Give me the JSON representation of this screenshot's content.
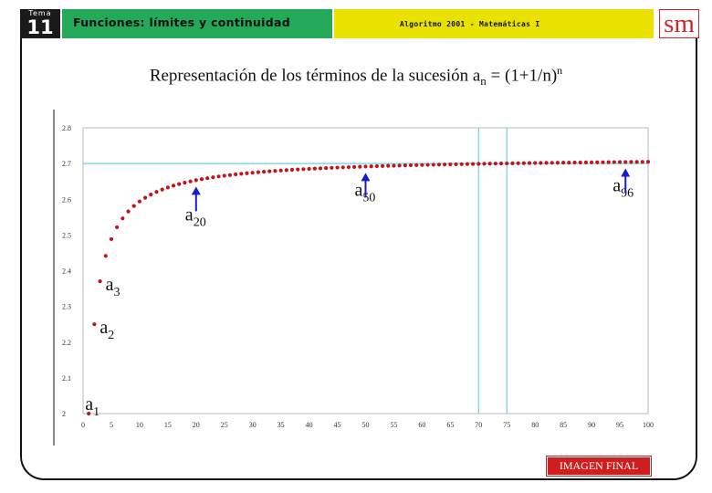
{
  "header": {
    "tema_label": "Tema",
    "tema_number": "11",
    "unit_title": "Funciones: límites y continuidad",
    "course": "Algoritmo 2001 - Matemáticas I",
    "logo": "sm"
  },
  "slide_title": {
    "prefix": "Representación de los términos de la sucesión a",
    "subscript": "n",
    "middle": " = (1+1/n)",
    "superscript": "n"
  },
  "final_button": "IMAGEN FINAL",
  "colors": {
    "unit_green": "#24a95a",
    "course_yellow": "#e9e100",
    "logo_red": "#d4232b",
    "point_red": "#c0151a",
    "grid_cyan": "#6fd1e6",
    "arrow_blue": "#1a1ad0",
    "button_red": "#cf1e1e"
  },
  "chart_data": {
    "type": "scatter",
    "title": "",
    "xlabel": "",
    "ylabel": "",
    "xlim": [
      0,
      100
    ],
    "ylim": [
      2,
      2.8
    ],
    "x_ticks": [
      0,
      5,
      10,
      15,
      20,
      25,
      30,
      35,
      40,
      45,
      50,
      55,
      60,
      65,
      70,
      75,
      80,
      85,
      90,
      95,
      100
    ],
    "y_ticks": [
      {
        "value": 2,
        "label": "2"
      },
      {
        "value": 2.1,
        "label": "2.1"
      },
      {
        "value": 2.2,
        "label": "2.2"
      },
      {
        "value": 2.3,
        "label": "2.3"
      },
      {
        "value": 2.4,
        "label": "2.4"
      },
      {
        "value": 2.5,
        "label": "2.5"
      },
      {
        "value": 2.6,
        "label": "2.6"
      },
      {
        "value": 2.7,
        "label": "2.7"
      },
      {
        "value": 2.8,
        "label": "2.8"
      }
    ],
    "series": [
      {
        "formula": "(1+1/n)^n",
        "n_from": 1,
        "n_to": 100
      }
    ],
    "reference_lines": {
      "horizontal": [
        2.7
      ],
      "vertical": [
        70,
        75
      ]
    },
    "annotations": [
      {
        "base": "a",
        "sub": "1",
        "x": 1,
        "arrow": false
      },
      {
        "base": "a",
        "sub": "2",
        "x": 2,
        "arrow": false
      },
      {
        "base": "a",
        "sub": "3",
        "x": 3,
        "arrow": false
      },
      {
        "base": "a",
        "sub": "20",
        "x": 20,
        "arrow": true
      },
      {
        "base": "a",
        "sub": "50",
        "x": 50,
        "arrow": true
      },
      {
        "base": "a",
        "sub": "96",
        "x": 96,
        "arrow": true
      }
    ]
  }
}
